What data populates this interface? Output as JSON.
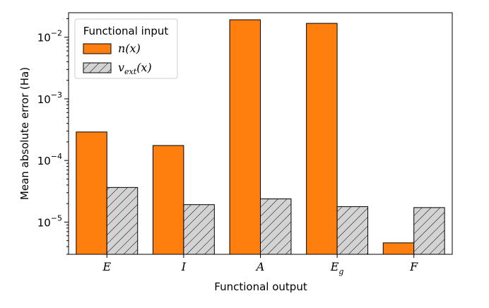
{
  "chart_data": {
    "type": "bar",
    "yscale": "log",
    "categories": [
      "E",
      "I",
      "A",
      "E_g",
      "F"
    ],
    "category_labels": [
      {
        "main": "E",
        "sub": ""
      },
      {
        "main": "I",
        "sub": ""
      },
      {
        "main": "A",
        "sub": ""
      },
      {
        "main": "E",
        "sub": "g"
      },
      {
        "main": "F",
        "sub": ""
      }
    ],
    "series": [
      {
        "name": "n(x)",
        "label_main": "n(x)",
        "label_sub": "",
        "color": "#ff7f0e",
        "hatch": false,
        "values": [
          0.00029,
          0.000175,
          0.0192,
          0.0168,
          4.6e-06
        ]
      },
      {
        "name": "v_ext(x)",
        "label_main": "v",
        "label_sub": "ext",
        "label_tail": "(x)",
        "color": "#d3d3d3",
        "hatch": true,
        "values": [
          3.65e-05,
          1.92e-05,
          2.38e-05,
          1.78e-05,
          1.72e-05
        ]
      }
    ],
    "ylim": [
      3e-06,
      0.025
    ],
    "yticks": [
      {
        "value": 1e-05,
        "base": "10",
        "exp": "−5"
      },
      {
        "value": 0.0001,
        "base": "10",
        "exp": "−4"
      },
      {
        "value": 0.001,
        "base": "10",
        "exp": "−3"
      },
      {
        "value": 0.01,
        "base": "10",
        "exp": "−2"
      }
    ],
    "xlabel": "Functional output",
    "ylabel": "Mean absolute error (Ha)",
    "legend_title": "Functional input",
    "legend_position": "top-left"
  }
}
